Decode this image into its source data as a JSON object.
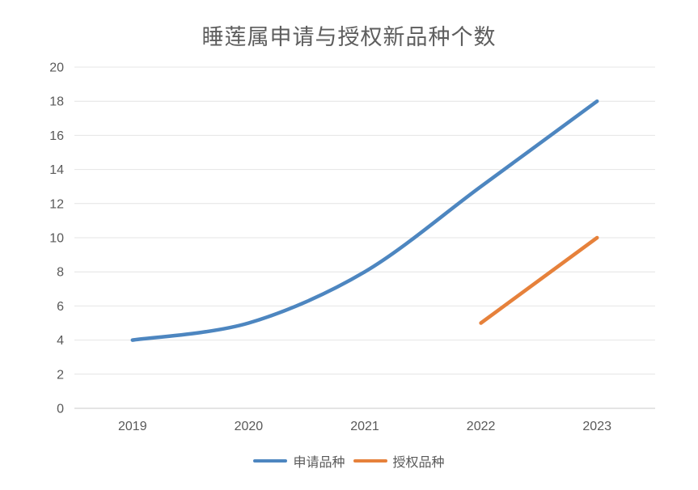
{
  "title": "睡莲属申请与授权新品种个数",
  "chart_data": {
    "type": "line",
    "title": "睡莲属申请与授权新品种个数",
    "categories": [
      "2019",
      "2020",
      "2021",
      "2022",
      "2023"
    ],
    "series": [
      {
        "name": "申请品种",
        "color": "#4D86C0",
        "values": [
          4,
          5,
          8,
          13,
          18
        ]
      },
      {
        "name": "授权品种",
        "color": "#E6813B",
        "values": [
          null,
          null,
          null,
          5,
          10
        ]
      }
    ],
    "xlabel": "",
    "ylabel": "",
    "ylim": [
      0,
      20
    ],
    "ytick_step": 2,
    "yticks": [
      0,
      2,
      4,
      6,
      8,
      10,
      12,
      14,
      16,
      18,
      20
    ],
    "grid": true,
    "legend_position": "bottom",
    "colors": {
      "grid": "#E4E4E4",
      "axis_line": "#C9C9C9",
      "text": "#595959",
      "background": "#FFFFFF"
    }
  }
}
